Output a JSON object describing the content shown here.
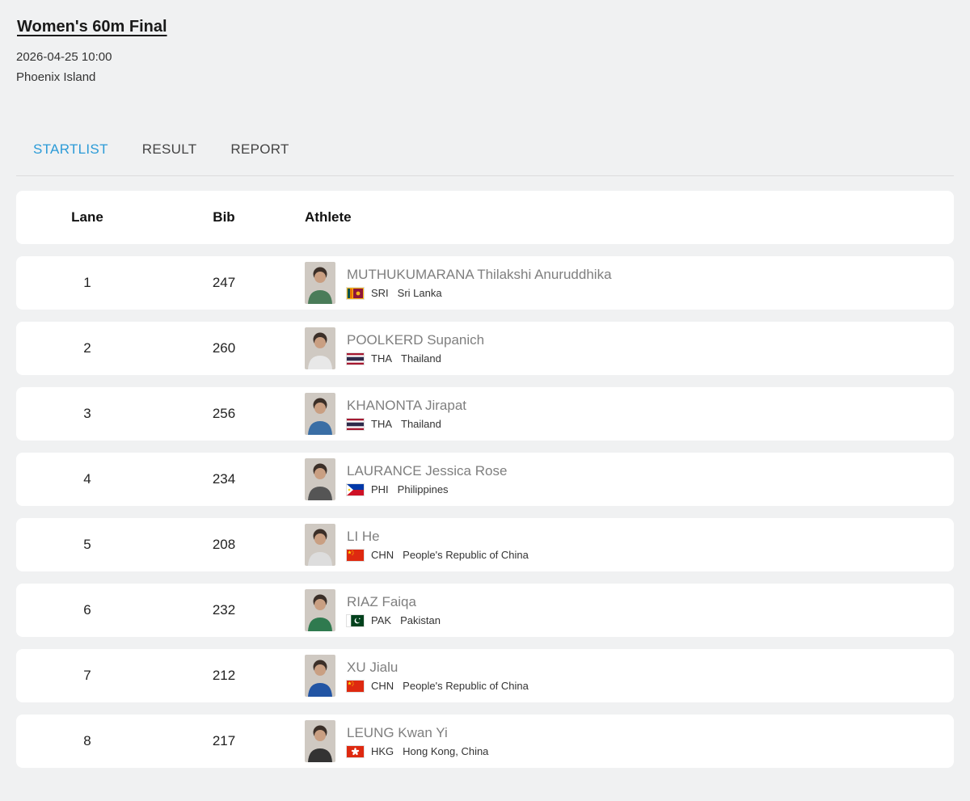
{
  "header": {
    "title": "Women's 60m Final",
    "datetime": "2026-04-25 10:00",
    "venue": "Phoenix Island"
  },
  "tabs": [
    {
      "label": "STARTLIST",
      "active": true
    },
    {
      "label": "RESULT",
      "active": false
    },
    {
      "label": "REPORT",
      "active": false
    }
  ],
  "table": {
    "columns": [
      "Lane",
      "Bib",
      "Athlete"
    ],
    "rows": [
      {
        "lane": "1",
        "bib": "247",
        "name": "MUTHUKUMARANA Thilakshi Anuruddhika",
        "noc": "SRI",
        "country": "Sri Lanka",
        "flag": "sri",
        "photo": "#4a7c59"
      },
      {
        "lane": "2",
        "bib": "260",
        "name": "POOLKERD Supanich",
        "noc": "THA",
        "country": "Thailand",
        "flag": "tha",
        "photo": "#e8e8e8"
      },
      {
        "lane": "3",
        "bib": "256",
        "name": "KHANONTA Jirapat",
        "noc": "THA",
        "country": "Thailand",
        "flag": "tha",
        "photo": "#3a6ea5"
      },
      {
        "lane": "4",
        "bib": "234",
        "name": "LAURANCE Jessica Rose",
        "noc": "PHI",
        "country": "Philippines",
        "flag": "phi",
        "photo": "#555555"
      },
      {
        "lane": "5",
        "bib": "208",
        "name": "LI He",
        "noc": "CHN",
        "country": "People's Republic of China",
        "flag": "chn",
        "photo": "#dddddd"
      },
      {
        "lane": "6",
        "bib": "232",
        "name": "RIAZ Faiqa",
        "noc": "PAK",
        "country": "Pakistan",
        "flag": "pak",
        "photo": "#2f7a4f"
      },
      {
        "lane": "7",
        "bib": "212",
        "name": "XU Jialu",
        "noc": "CHN",
        "country": "People's Republic of China",
        "flag": "chn",
        "photo": "#2255a4"
      },
      {
        "lane": "8",
        "bib": "217",
        "name": "LEUNG Kwan Yi",
        "noc": "HKG",
        "country": "Hong Kong, China",
        "flag": "hkg",
        "photo": "#333333"
      }
    ]
  },
  "colors": {
    "accent": "#2b9bd7",
    "card_background": "#ffffff",
    "page_background": "#f0f1f2",
    "athlete_name_text": "#7f7f7f"
  }
}
